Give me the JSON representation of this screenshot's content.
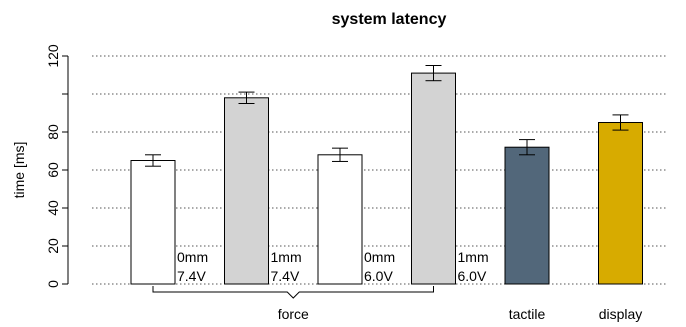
{
  "chart_data": {
    "type": "bar",
    "title": "system latency",
    "ylabel": "time [ms]",
    "xlabel": "",
    "ylim": [
      0,
      120
    ],
    "yticks": [
      0,
      20,
      40,
      60,
      80,
      120
    ],
    "grid": true,
    "bars": [
      {
        "value": 65,
        "error": 3,
        "color": "#ffffff",
        "label": [
          "0mm",
          "7.4V"
        ]
      },
      {
        "value": 98,
        "error": 3,
        "color": "#d3d3d3",
        "label": [
          "1mm",
          "7.4V"
        ]
      },
      {
        "value": 68,
        "error": 3.5,
        "color": "#ffffff",
        "label": [
          "0mm",
          "6.0V"
        ]
      },
      {
        "value": 111,
        "error": 4,
        "color": "#d3d3d3",
        "label": [
          "1mm",
          "6.0V"
        ]
      },
      {
        "value": 72,
        "error": 4,
        "color": "#52677a",
        "label": []
      },
      {
        "value": 85,
        "error": 4,
        "color": "#d7ab00",
        "label": []
      }
    ],
    "groups": [
      {
        "name": "force",
        "bars": [
          0,
          1,
          2,
          3
        ]
      },
      {
        "name": "tactile",
        "bars": [
          4
        ]
      },
      {
        "name": "display",
        "bars": [
          5
        ]
      }
    ]
  }
}
